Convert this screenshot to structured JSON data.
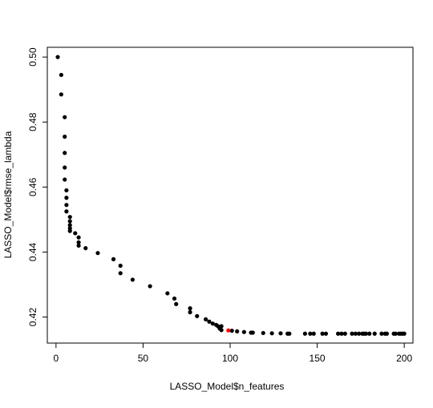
{
  "chart_data": {
    "type": "scatter",
    "title": "",
    "xlabel": "LASSO_Model$n_features",
    "ylabel": "LASSO_Model$rmse_lambda",
    "xlim": [
      -5,
      205
    ],
    "ylim": [
      0.412,
      0.503
    ],
    "x_ticks": [
      0,
      50,
      100,
      150,
      200
    ],
    "y_ticks": [
      0.42,
      0.44,
      0.46,
      0.48,
      0.5
    ],
    "x_tick_labels": [
      "0",
      "50",
      "100",
      "150",
      "200"
    ],
    "y_tick_labels": [
      "0.42",
      "0.44",
      "0.46",
      "0.48",
      "0.50"
    ],
    "grid": false,
    "legend": "none",
    "colors": {
      "points": "#000000",
      "highlight": "#ff0000"
    },
    "series": [
      {
        "points": [
          [
            1,
            0.5
          ],
          [
            3,
            0.4945
          ],
          [
            3,
            0.4885
          ],
          [
            5,
            0.4815
          ],
          [
            5,
            0.4755
          ],
          [
            5,
            0.4705
          ],
          [
            5,
            0.466
          ],
          [
            5,
            0.4623
          ],
          [
            6,
            0.459
          ],
          [
            6,
            0.4567
          ],
          [
            6,
            0.4545
          ],
          [
            6,
            0.4525
          ],
          [
            8,
            0.4508
          ],
          [
            8,
            0.4495
          ],
          [
            8,
            0.4483
          ],
          [
            8,
            0.4473
          ],
          [
            8,
            0.4465
          ],
          [
            11,
            0.4458
          ],
          [
            13,
            0.4445
          ],
          [
            13,
            0.443
          ],
          [
            13,
            0.442
          ],
          [
            17,
            0.4412
          ],
          [
            24,
            0.4397
          ],
          [
            33,
            0.4378
          ],
          [
            37,
            0.4358
          ],
          [
            37,
            0.4335
          ],
          [
            44,
            0.4315
          ],
          [
            54,
            0.4295
          ],
          [
            64,
            0.4273
          ],
          [
            68,
            0.4257
          ],
          [
            69,
            0.424
          ],
          [
            77,
            0.4227
          ],
          [
            77,
            0.4215
          ],
          [
            81,
            0.4203
          ],
          [
            86,
            0.4193
          ],
          [
            88,
            0.4186
          ],
          [
            90,
            0.418
          ],
          [
            92,
            0.4176
          ],
          [
            93,
            0.4172
          ],
          [
            94,
            0.4165
          ],
          [
            95,
            0.416
          ],
          [
            95,
            0.4172
          ],
          [
            101,
            0.4158
          ],
          [
            104,
            0.4156
          ],
          [
            108,
            0.4154
          ],
          [
            112,
            0.4152
          ],
          [
            113,
            0.4152
          ],
          [
            119,
            0.4151
          ],
          [
            124,
            0.415
          ],
          [
            129,
            0.415
          ],
          [
            133,
            0.4149
          ],
          [
            134,
            0.4149
          ],
          [
            143,
            0.4149
          ],
          [
            146,
            0.4149
          ],
          [
            148,
            0.4149
          ],
          [
            153,
            0.4149
          ],
          [
            155,
            0.4149
          ],
          [
            162,
            0.4149
          ],
          [
            164,
            0.4149
          ],
          [
            166,
            0.4149
          ],
          [
            170,
            0.4149
          ],
          [
            172,
            0.4149
          ],
          [
            174,
            0.4149
          ],
          [
            176,
            0.4149
          ],
          [
            177,
            0.4149
          ],
          [
            178,
            0.4149
          ],
          [
            180,
            0.4149
          ],
          [
            183,
            0.4149
          ],
          [
            187,
            0.4149
          ],
          [
            189,
            0.4149
          ],
          [
            190,
            0.4149
          ],
          [
            194,
            0.4149
          ],
          [
            195,
            0.4149
          ],
          [
            197,
            0.4149
          ],
          [
            198,
            0.4149
          ],
          [
            199,
            0.4149
          ],
          [
            200,
            0.4149
          ]
        ],
        "color": "#000000"
      },
      {
        "points": [
          [
            99,
            0.4159
          ]
        ],
        "color": "#ff0000"
      }
    ]
  }
}
